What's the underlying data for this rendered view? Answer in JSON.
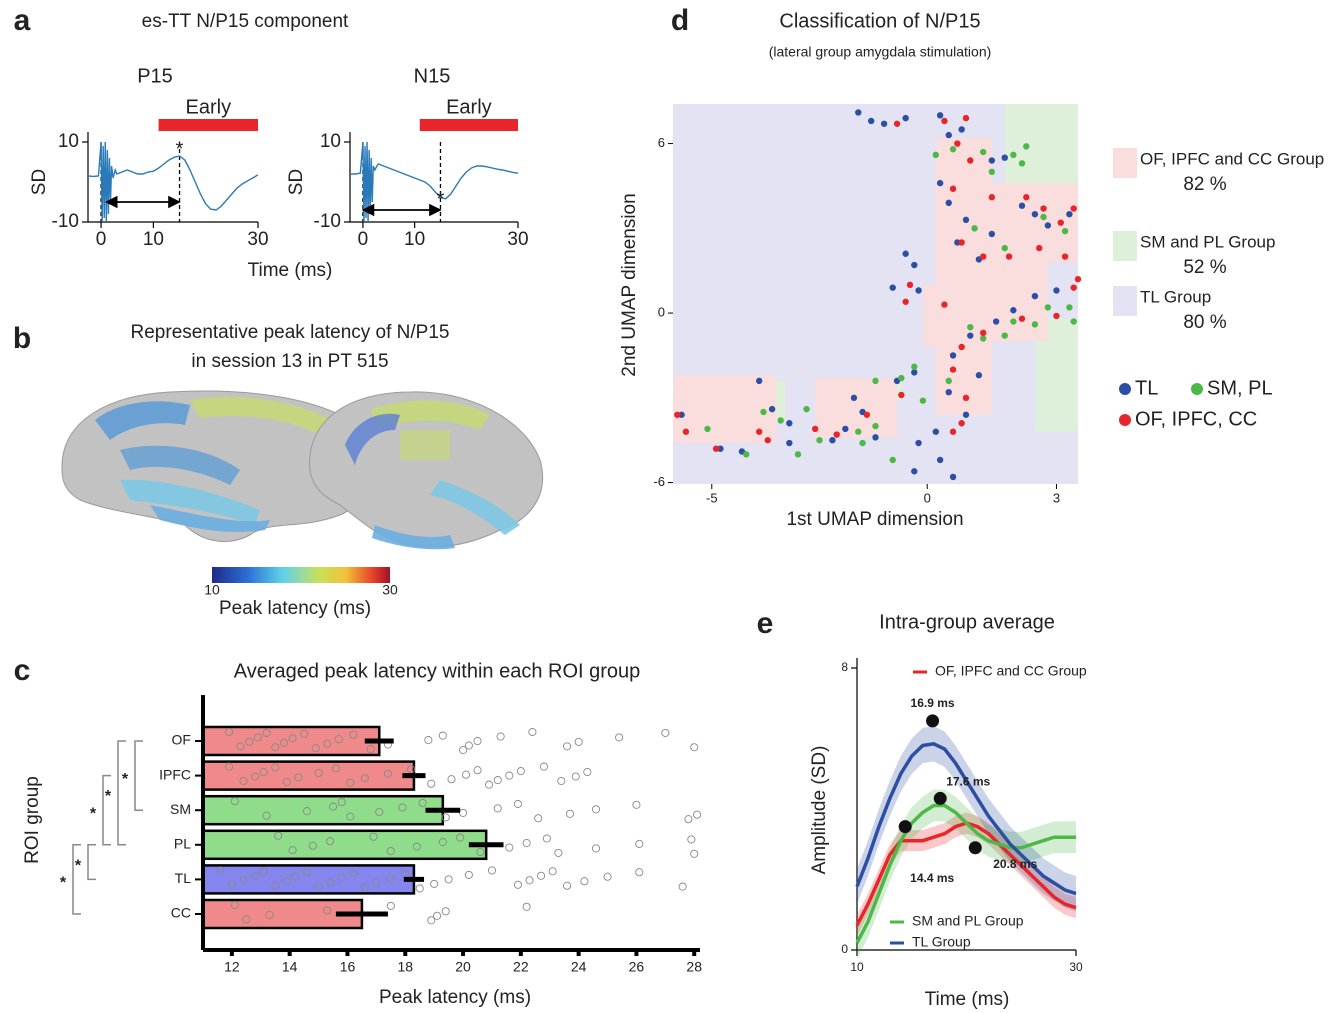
{
  "chart_data": [
    {
      "type": "line",
      "panel_label": "a",
      "panel_title": "es-TT N/P15 component",
      "title": "P15",
      "xlabel": "Time (ms)",
      "ylabel": "SD",
      "xlim": [
        -2.5,
        30
      ],
      "xticks": [
        0,
        10,
        30
      ],
      "ylim": [
        -10,
        10
      ],
      "yticks": [
        -10,
        10
      ],
      "markers": [
        0,
        15
      ],
      "window": {
        "values": [
          11,
          30
        ],
        "label": "Early",
        "color": "#e8262a"
      },
      "arrow": {
        "x": [
          1,
          15
        ],
        "y": -5
      },
      "peak": {
        "x": 15,
        "y": 9,
        "label": "*",
        "color": "#e8262a"
      },
      "series": [
        {
          "color": "#2a7ab9",
          "x": [
            -2.5,
            -1.5,
            -0.5,
            0,
            0.2,
            0.4,
            0.6,
            0.8,
            1,
            1.2,
            1.4,
            1.6,
            1.8,
            2,
            2.3,
            2.7,
            3,
            4,
            5,
            6,
            7,
            8,
            9,
            10,
            11,
            12,
            13,
            14,
            15,
            16,
            17,
            18,
            19,
            20,
            21,
            22,
            23,
            24,
            25,
            26,
            27,
            28,
            29,
            30
          ],
          "values": [
            1.5,
            1.4,
            1.5,
            10,
            -10,
            9,
            -9,
            10,
            -10,
            8,
            -8,
            6,
            -5,
            4,
            1,
            3,
            2,
            2.5,
            3,
            2.5,
            2,
            2,
            2.5,
            2.7,
            3.5,
            4.5,
            5.5,
            6.2,
            6.5,
            5.5,
            3,
            0,
            -3,
            -5.5,
            -6.8,
            -7,
            -6,
            -4.5,
            -3,
            -1.5,
            -0.5,
            0.3,
            1,
            1.8
          ]
        }
      ]
    },
    {
      "type": "line",
      "title": "N15",
      "ylabel": "SD",
      "xlim": [
        -2.5,
        30
      ],
      "xticks": [
        0,
        10,
        30
      ],
      "ylim": [
        -10,
        10
      ],
      "yticks": [
        -10,
        10
      ],
      "markers": [
        0,
        15
      ],
      "window": {
        "values": [
          11,
          30
        ],
        "label": "Early",
        "color": "#e8262a"
      },
      "arrow": {
        "x": [
          0,
          15
        ],
        "y": -7
      },
      "peak": {
        "x": 15,
        "y": -3.5,
        "label": "*",
        "color": "#e8262a"
      },
      "series": [
        {
          "color": "#2a7ab9",
          "x": [
            -2.5,
            -1.5,
            -0.5,
            0,
            0.2,
            0.4,
            0.6,
            0.8,
            1,
            1.2,
            1.4,
            1.6,
            1.8,
            2,
            2.3,
            2.7,
            3,
            4,
            5,
            6,
            7,
            8,
            9,
            10,
            11,
            12,
            13,
            14,
            15,
            16,
            17,
            18,
            19,
            20,
            21,
            22,
            23,
            24,
            25,
            26,
            27,
            28,
            29,
            30
          ],
          "values": [
            2,
            2,
            2.2,
            10,
            -10,
            9,
            -9,
            10,
            -10,
            8,
            -8,
            6,
            -5,
            4,
            3,
            4,
            4.5,
            4,
            3.5,
            3,
            2.5,
            2,
            1.5,
            1,
            0.5,
            0,
            -1,
            -2.5,
            -3.8,
            -4.2,
            -3,
            -1,
            1,
            2.5,
            3.5,
            4,
            4,
            3.8,
            3.5,
            3.2,
            3,
            2.7,
            2.4,
            2.2
          ]
        }
      ]
    },
    {
      "type": "bar",
      "orientation": "horizontal",
      "panel_label": "c",
      "title": "Averaged peak latency within each ROI group",
      "xlabel": "Peak latency (ms)",
      "ylabel": "ROI group",
      "categories": [
        "OF",
        "IPFC",
        "SM",
        "PL",
        "TL",
        "CC"
      ],
      "values": [
        17.1,
        18.3,
        19.3,
        20.8,
        18.3,
        16.5
      ],
      "errors": [
        0.5,
        0.4,
        0.6,
        0.6,
        0.35,
        0.9
      ],
      "colors": [
        "#f08a8a",
        "#f08a8a",
        "#8fdc8a",
        "#8fdc8a",
        "#8585f0",
        "#f08a8a"
      ],
      "points": [
        [
          11.9,
          12.3,
          12.6,
          12.9,
          13.2,
          13.5,
          13.8,
          14.1,
          14.5,
          14.9,
          15.3,
          15.7,
          16.2,
          16.8,
          17.4,
          18.8,
          19.3,
          20.0,
          20.2,
          20.5,
          21.3,
          22.4,
          23.6,
          24.0,
          25.4,
          27.0,
          28.0
        ],
        [
          11.9,
          12.4,
          12.8,
          13.1,
          13.5,
          13.9,
          14.3,
          15.0,
          15.6,
          16.1,
          16.6,
          17.4,
          18.2,
          18.9,
          19.6,
          20.1,
          20.5,
          20.9,
          21.2,
          21.6,
          22.0,
          22.8,
          23.4,
          23.9,
          24.3
        ],
        [
          12.1,
          13.2,
          14.6,
          15.5,
          15.8,
          16.1,
          17.1,
          17.9,
          18.6,
          19.4,
          20.0,
          21.2,
          21.9,
          22.6,
          23.7,
          24.6,
          26.0,
          27.8,
          28.1
        ],
        [
          13.6,
          14.1,
          14.8,
          15.4,
          16.9,
          17.5,
          18.4,
          19.3,
          19.9,
          20.6,
          21.6,
          22.2,
          22.9,
          23.3,
          24.6,
          26.1,
          27.9,
          28.0
        ],
        [
          11.6,
          12.0,
          12.4,
          12.8,
          13.1,
          13.5,
          13.9,
          14.2,
          14.6,
          15.0,
          15.4,
          15.8,
          16.2,
          16.6,
          17.0,
          17.5,
          18.0,
          18.5,
          19.0,
          19.5,
          20.2,
          21.0,
          21.9,
          22.3,
          22.7,
          23.1,
          23.6,
          24.2,
          25.0,
          26.1,
          27.6
        ],
        [
          12.1,
          12.5,
          13.3,
          15.3,
          17.5,
          18.9,
          19.1,
          19.4,
          22.2
        ]
      ],
      "significance": [
        {
          "between": [
            "OF",
            "SM"
          ],
          "label": "*"
        },
        {
          "between": [
            "OF",
            "PL"
          ],
          "label": "*"
        },
        {
          "between": [
            "IPFC",
            "PL"
          ],
          "label": "*"
        },
        {
          "between": [
            "PL",
            "TL"
          ],
          "label": "*"
        },
        {
          "between": [
            "PL",
            "CC"
          ],
          "label": "*"
        }
      ],
      "xlim": [
        11,
        28.2
      ],
      "xticks": [
        12,
        14,
        16,
        18,
        20,
        22,
        24,
        26,
        28
      ]
    },
    {
      "type": "scatter",
      "panel_label": "d",
      "title": "Classification of N/P15",
      "subtitle": "(lateral group amygdala stimulation)",
      "xlabel": "1st UMAP dimension",
      "ylabel": "2nd UMAP dimension",
      "xlim": [
        -5.9,
        3.5
      ],
      "xticks": [
        -5,
        0,
        3
      ],
      "ylim": [
        -6.05,
        7.4
      ],
      "yticks": [
        -6,
        0,
        6
      ],
      "classes": [
        {
          "name": "OF, IPFC and CC Group",
          "accuracy": 82,
          "accuracy_label": "82 %",
          "color": "#fadede",
          "rects": [
            [
              -5.9,
              -3.5,
              -4.6,
              -2.2
            ],
            [
              -2.6,
              -0.7,
              -4.4,
              -2.3
            ],
            [
              0.2,
              1.5,
              -3.6,
              6.2
            ],
            [
              1.5,
              3.5,
              1.8,
              4.6
            ],
            [
              1.5,
              2.8,
              -1.0,
              1.8
            ],
            [
              -0.1,
              0.2,
              -1.2,
              1.0
            ]
          ]
        },
        {
          "name": "SM and PL Group",
          "accuracy": 52,
          "accuracy_label": "52 %",
          "color": "#dff0da",
          "rects": [
            [
              1.8,
              3.5,
              4.6,
              7.4
            ],
            [
              2.5,
              3.5,
              -4.2,
              -0.2
            ],
            [
              -4.3,
              -3.3,
              -3.8,
              -2.4
            ],
            [
              -1.4,
              -0.6,
              -3.1,
              -2.5
            ]
          ]
        },
        {
          "name": "TL Group",
          "accuracy": 80,
          "accuracy_label": "80 %",
          "color": "#e3e3f3",
          "rects": [
            [
              -5.9,
              3.5,
              -6.05,
              7.4
            ]
          ]
        }
      ],
      "series": [
        {
          "name": "TL",
          "color": "#2c4fa3",
          "x": [
            -1.6,
            -1.3,
            -1.0,
            -0.5,
            0.3,
            0.5,
            0.8,
            1.5,
            1.8,
            0.3,
            0.5,
            0.9,
            1.5,
            2.2,
            2.5,
            2.8,
            3.3,
            -0.5,
            -0.3,
            -0.8,
            -0.2,
            0.7,
            1.2,
            2.5,
            3.0,
            1.0,
            1.6,
            2.0,
            0.6,
            1.2,
            0.9,
            0.2,
            -0.2,
            0.3,
            0.6,
            -0.3,
            -1.2,
            -1.9,
            -1.5,
            -3.2,
            -3.6,
            -3.9,
            -4.3,
            -4.8,
            -5.7,
            -3.2,
            -2.2,
            -1.7,
            -0.7,
            -0.3,
            0.5
          ],
          "values": [
            7.1,
            6.8,
            6.7,
            6.9,
            7.0,
            6.3,
            6.5,
            5.4,
            5.5,
            4.6,
            3.9,
            3.3,
            2.8,
            3.8,
            3.5,
            3.1,
            3.5,
            2.1,
            1.7,
            0.9,
            0.8,
            2.5,
            1.9,
            0.6,
            0.8,
            -0.8,
            -0.3,
            0.1,
            -1.5,
            -2.2,
            -3.6,
            -4.2,
            -4.6,
            -5.2,
            -5.8,
            -5.6,
            -4.4,
            -4.1,
            -3.5,
            -3.9,
            -3.4,
            -2.4,
            -4.9,
            -4.8,
            -3.6,
            -4.6,
            -4.5,
            -3.0,
            -2.4,
            -2.1,
            -2.8
          ]
        },
        {
          "name": "SM, PL",
          "color": "#4db848",
          "x": [
            0.2,
            0.6,
            1.3,
            1.5,
            2.0,
            2.2,
            2.3,
            2.7,
            3.2,
            1.1,
            1.8,
            1.0,
            1.3,
            2.0,
            2.5,
            2.8,
            3.4,
            3.3,
            -1.2,
            -0.6,
            -0.3,
            0.5,
            -0.8,
            -0.1,
            -3.8,
            -3.4,
            -2.8,
            -2.5,
            -1.5,
            -1.2,
            -4.2,
            -3.0,
            -5.1,
            -1.6,
            1.8
          ],
          "values": [
            5.6,
            5.8,
            5.7,
            5.0,
            5.6,
            5.3,
            5.9,
            3.4,
            2.9,
            3.0,
            2.3,
            -0.5,
            -0.9,
            -0.3,
            -0.4,
            0.2,
            -0.3,
            0.2,
            -2.4,
            -2.3,
            -1.9,
            -2.4,
            -5.2,
            -3.1,
            -3.5,
            -3.8,
            -3.4,
            -4.5,
            -4.6,
            -4.0,
            -5.0,
            -5.0,
            -4.1,
            -4.2,
            -0.8
          ]
        },
        {
          "name": "OF, IPFC, CC",
          "color": "#e8262a",
          "x": [
            -0.7,
            0.4,
            0.9,
            0.7,
            1.0,
            1.5,
            0.6,
            2.3,
            2.7,
            3.1,
            3.4,
            0.8,
            1.3,
            1.9,
            2.6,
            3.2,
            3.5,
            3.4,
            -0.4,
            -0.5,
            0.4,
            1.3,
            2.2,
            3.0,
            0.8,
            0.6,
            0.9,
            0.8,
            0.6,
            -0.6,
            -1.4,
            -2.6,
            -2.1,
            -5.8,
            -5.6,
            -4.9,
            -3.9,
            -3.7
          ],
          "values": [
            6.7,
            6.8,
            6.9,
            6.0,
            5.4,
            4.1,
            4.4,
            4.1,
            3.7,
            3.2,
            3.7,
            2.5,
            2.0,
            2.0,
            2.3,
            2.0,
            1.2,
            0.9,
            1.0,
            0.4,
            0.3,
            -0.7,
            -0.2,
            -0.1,
            -1.2,
            -2.0,
            -3.0,
            -3.9,
            -4.2,
            -2.9,
            -3.6,
            -4.1,
            -4.3,
            -3.6,
            -4.2,
            -4.8,
            -4.2,
            -4.5
          ]
        }
      ]
    },
    {
      "type": "line",
      "panel_label": "e",
      "title": "Intra-group average",
      "xlabel": "Time (ms)",
      "ylabel": "Amplitude (SD)",
      "xlim": [
        10,
        30
      ],
      "xticks": [
        10,
        30
      ],
      "ylim": [
        0,
        8
      ],
      "yticks": [
        0,
        8
      ],
      "series": [
        {
          "name": "OF, IPFC and CC Group",
          "color": "#e8262a",
          "band": 0.3,
          "x": [
            10,
            11,
            12,
            13,
            14,
            15,
            16,
            17,
            18,
            19,
            20,
            21,
            22,
            23,
            24,
            25,
            26,
            27,
            28,
            29,
            30
          ],
          "values": [
            0.7,
            1.3,
            2.0,
            2.7,
            3.1,
            3.1,
            3.1,
            3.2,
            3.3,
            3.5,
            3.6,
            3.5,
            3.3,
            3.0,
            2.7,
            2.4,
            2.1,
            1.8,
            1.5,
            1.3,
            1.2
          ]
        },
        {
          "name": "SM and PL Group",
          "color": "#4db848",
          "band": 0.45,
          "x": [
            10,
            11,
            12,
            13,
            14,
            15,
            16,
            17,
            18,
            19,
            20,
            21,
            22,
            23,
            24,
            25,
            26,
            27,
            28,
            29,
            30
          ],
          "values": [
            0.2,
            0.8,
            1.6,
            2.4,
            3.1,
            3.6,
            3.9,
            4.1,
            4.1,
            3.9,
            3.6,
            3.3,
            3.1,
            3.0,
            2.9,
            2.9,
            3.0,
            3.1,
            3.2,
            3.2,
            3.2
          ]
        },
        {
          "name": "TL Group",
          "color": "#2c4fa3",
          "band": 0.5,
          "x": [
            10,
            11,
            12,
            13,
            14,
            15,
            16,
            17,
            18,
            19,
            20,
            21,
            22,
            23,
            24,
            25,
            26,
            27,
            28,
            29,
            30
          ],
          "values": [
            1.8,
            2.6,
            3.5,
            4.3,
            5.0,
            5.5,
            5.8,
            5.85,
            5.7,
            5.3,
            4.8,
            4.3,
            3.8,
            3.4,
            3.0,
            2.7,
            2.4,
            2.1,
            1.9,
            1.7,
            1.6
          ]
        }
      ],
      "annotations": [
        {
          "x": 16.9,
          "y": 6.5,
          "label": "16.9 ms"
        },
        {
          "x": 17.6,
          "y": 4.3,
          "label": "17.6 ms"
        },
        {
          "x": 14.4,
          "y": 3.5,
          "label": "14.4 ms"
        },
        {
          "x": 20.8,
          "y": 2.9,
          "label": "20.8 ms"
        }
      ]
    }
  ],
  "panel_b": {
    "panel_label": "b",
    "title_lines": [
      "Representative peak latency of N/P15",
      "in session 13 in PT 515"
    ],
    "colorbar": {
      "lim": [
        10,
        30
      ],
      "ticks": [
        10,
        30
      ],
      "label": "Peak latency (ms)"
    }
  }
}
